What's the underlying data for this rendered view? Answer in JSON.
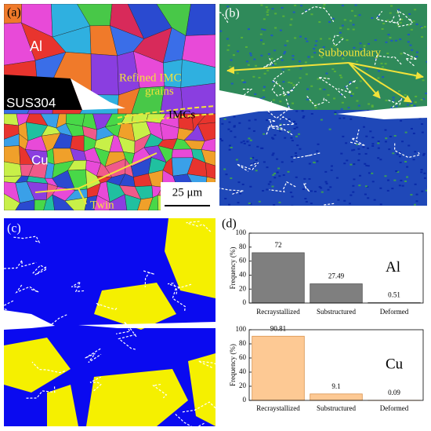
{
  "panels": {
    "a": {
      "label": "(a)",
      "annotations": [
        "Al",
        "SUS304",
        "Refined IMC",
        "grains",
        "IMCs",
        "Cu",
        "Twin"
      ],
      "scale_bar": "25 μm"
    },
    "b": {
      "label": "(b)",
      "annotations": [
        "Subboundary"
      ]
    },
    "c": {
      "label": "(c)"
    },
    "d": {
      "label": "(d)"
    }
  },
  "chart_data": [
    {
      "type": "bar",
      "annotation": "Al",
      "ylabel": "Frequency (%)",
      "categories": [
        "Recraystallized",
        "Substructured",
        "Deformed"
      ],
      "values": [
        72,
        27.49,
        0.51
      ],
      "color": "#7f7f7f",
      "edgecolor": "#555555",
      "ylim": [
        0,
        100
      ],
      "yticks": [
        0,
        20,
        40,
        60,
        80,
        100
      ]
    },
    {
      "type": "bar",
      "annotation": "Cu",
      "ylabel": "Frequency (%)",
      "categories": [
        "Recraystallized",
        "Substructured",
        "Deformed"
      ],
      "values": [
        90.81,
        9.1,
        0.09
      ],
      "color": "#fdc994",
      "edgecolor": "#d9924a",
      "ylim": [
        0,
        100
      ],
      "yticks": [
        0,
        20,
        40,
        60,
        80,
        100
      ]
    }
  ]
}
